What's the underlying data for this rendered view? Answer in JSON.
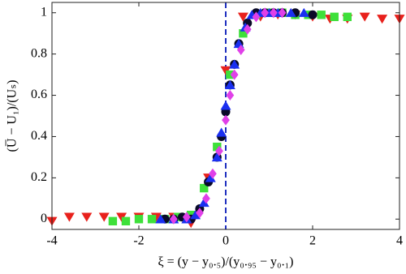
{
  "chart_data": {
    "type": "scatter",
    "xlabel": "ξ = (y − y₀.₅)/(y₀.₉₅ − y₀.₁)",
    "ylabel": "(U̅ − U₁)/(Uₛ)",
    "xlim": [
      -4,
      4
    ],
    "xticks": [
      -4,
      -2,
      0,
      2,
      4
    ],
    "ylim": [
      -0.05,
      1.05
    ],
    "yticks": [
      0,
      0.2,
      0.4,
      0.6,
      0.8,
      1
    ],
    "vline": {
      "x": 0,
      "color": "#1f2fbf",
      "style": "dashed"
    },
    "series": [
      {
        "color": "#e8211c",
        "marker": "triangle-down",
        "x": [
          -4,
          -3.6,
          -3.2,
          -2.8,
          -2.4,
          -2,
          -1.6,
          -1.2,
          -0.8,
          -0.4,
          0,
          0.4,
          0.8,
          1.2,
          1.6,
          2,
          2.4,
          2.8,
          3.2,
          3.6,
          4
        ],
        "values": [
          -0.01,
          0.01,
          0.01,
          0.01,
          0.01,
          0.01,
          0.01,
          0.01,
          -0.02,
          0.2,
          0.72,
          0.98,
          0.98,
          0.99,
          0.99,
          0.98,
          0.97,
          0.97,
          0.98,
          0.97,
          0.97
        ]
      },
      {
        "color": "#3ee03a",
        "marker": "square",
        "x": [
          -2.6,
          -2.3,
          -2,
          -1.7,
          -1.4,
          -1.1,
          -0.8,
          -0.5,
          -0.2,
          0.1,
          0.4,
          0.7,
          1,
          1.3,
          1.6,
          1.9,
          2.2,
          2.5,
          2.8
        ],
        "values": [
          -0.01,
          -0.01,
          0,
          0,
          0,
          0.01,
          0.02,
          0.15,
          0.35,
          0.7,
          0.9,
          0.99,
          1,
          1,
          0.99,
          0.99,
          0.99,
          0.98,
          0.98
        ]
      },
      {
        "color": "#0a0a28",
        "marker": "circle",
        "x": [
          -1.4,
          -1.2,
          -1,
          -0.8,
          -0.6,
          -0.4,
          -0.2,
          -0.1,
          0,
          0.1,
          0.2,
          0.3,
          0.5,
          0.7,
          0.9,
          1.1,
          1.3,
          1.6,
          2
        ],
        "values": [
          0,
          0,
          0.01,
          0,
          0.05,
          0.18,
          0.3,
          0.4,
          0.52,
          0.65,
          0.75,
          0.85,
          0.95,
          1,
          1,
          1,
          1,
          1,
          0.99
        ]
      },
      {
        "color": "#1a2ff0",
        "marker": "triangle-up",
        "x": [
          -1.5,
          -1.2,
          -0.9,
          -0.7,
          -0.5,
          -0.35,
          -0.2,
          -0.1,
          0,
          0.1,
          0.2,
          0.3,
          0.45,
          0.6,
          0.8,
          1,
          1.2,
          1.5,
          1.8
        ],
        "values": [
          0,
          0,
          0,
          0.02,
          0.08,
          0.2,
          0.3,
          0.42,
          0.55,
          0.65,
          0.75,
          0.85,
          0.93,
          0.99,
          1,
          1,
          1,
          1,
          1
        ]
      },
      {
        "color": "#e040e8",
        "marker": "diamond",
        "x": [
          -1.2,
          -0.9,
          -0.6,
          -0.45,
          -0.3,
          -0.15,
          0,
          0.1,
          0.2,
          0.35,
          0.5,
          0.7,
          0.9,
          1.1,
          1.3
        ],
        "values": [
          0,
          0.01,
          0.03,
          0.1,
          0.22,
          0.33,
          0.48,
          0.6,
          0.7,
          0.82,
          0.92,
          0.98,
          1,
          1,
          1
        ]
      }
    ]
  }
}
